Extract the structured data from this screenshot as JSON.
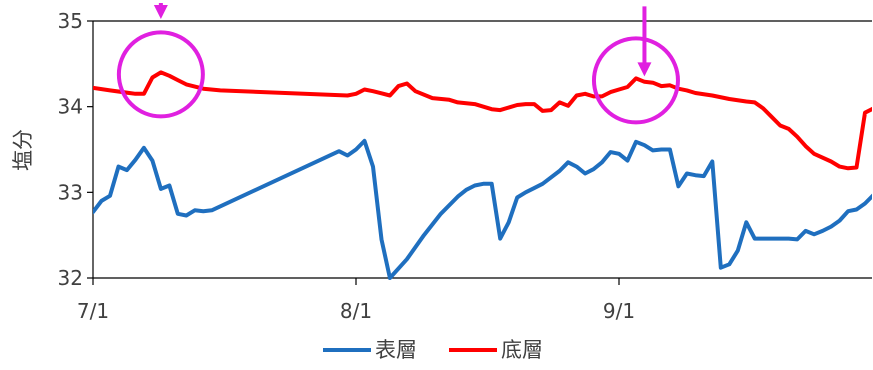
{
  "chart_data": {
    "type": "line",
    "title": "",
    "xlabel": "",
    "ylabel": "塩分",
    "ylim": [
      32,
      35
    ],
    "yticks": [
      "32",
      "33",
      "34",
      "35"
    ],
    "xlim": [
      "2023-07-01",
      "2023-09-30"
    ],
    "xticks": [
      {
        "date": "2023-07-01",
        "label": "7/1"
      },
      {
        "date": "2023-08-01",
        "label": "8/1"
      },
      {
        "date": "2023-09-01",
        "label": "9/1"
      }
    ],
    "grid": "horizontal at y=32 and y=35 only",
    "legend_position": "bottom",
    "series": [
      {
        "name": "表層",
        "color": "#1f6fbf",
        "points": [
          [
            "2023-07-01",
            32.77
          ],
          [
            "2023-07-02",
            32.9
          ],
          [
            "2023-07-03",
            32.96
          ],
          [
            "2023-07-04",
            33.3
          ],
          [
            "2023-07-05",
            33.26
          ],
          [
            "2023-07-06",
            33.38
          ],
          [
            "2023-07-07",
            33.52
          ],
          [
            "2023-07-08",
            33.37
          ],
          [
            "2023-07-09",
            33.04
          ],
          [
            "2023-07-10",
            33.08
          ],
          [
            "2023-07-11",
            32.75
          ],
          [
            "2023-07-12",
            32.73
          ],
          [
            "2023-07-13",
            32.79
          ],
          [
            "2023-07-14",
            32.78
          ],
          [
            "2023-07-15",
            32.79
          ],
          [
            "2023-07-30",
            33.48
          ],
          [
            "2023-07-31",
            33.43
          ],
          [
            "2023-08-01",
            33.5
          ],
          [
            "2023-08-02",
            33.6
          ],
          [
            "2023-08-03",
            33.3
          ],
          [
            "2023-08-04",
            32.45
          ],
          [
            "2023-08-05",
            32.0
          ],
          [
            "2023-08-07",
            32.22
          ],
          [
            "2023-08-09",
            32.5
          ],
          [
            "2023-08-11",
            32.75
          ],
          [
            "2023-08-13",
            32.95
          ],
          [
            "2023-08-14",
            33.03
          ],
          [
            "2023-08-15",
            33.08
          ],
          [
            "2023-08-16",
            33.1
          ],
          [
            "2023-08-17",
            33.1
          ],
          [
            "2023-08-18",
            32.46
          ],
          [
            "2023-08-19",
            32.65
          ],
          [
            "2023-08-20",
            32.94
          ],
          [
            "2023-08-21",
            33.0
          ],
          [
            "2023-08-22",
            33.05
          ],
          [
            "2023-08-23",
            33.1
          ],
          [
            "2023-08-25",
            33.25
          ],
          [
            "2023-08-26",
            33.35
          ],
          [
            "2023-08-27",
            33.3
          ],
          [
            "2023-08-28",
            33.22
          ],
          [
            "2023-08-29",
            33.27
          ],
          [
            "2023-08-30",
            33.35
          ],
          [
            "2023-08-31",
            33.47
          ],
          [
            "2023-09-01",
            33.45
          ],
          [
            "2023-09-02",
            33.37
          ],
          [
            "2023-09-03",
            33.59
          ],
          [
            "2023-09-04",
            33.55
          ],
          [
            "2023-09-05",
            33.49
          ],
          [
            "2023-09-06",
            33.5
          ],
          [
            "2023-09-07",
            33.5
          ],
          [
            "2023-09-08",
            33.07
          ],
          [
            "2023-09-09",
            33.22
          ],
          [
            "2023-09-10",
            33.2
          ],
          [
            "2023-09-11",
            33.19
          ],
          [
            "2023-09-12",
            33.36
          ],
          [
            "2023-09-13",
            32.12
          ],
          [
            "2023-09-14",
            32.16
          ],
          [
            "2023-09-15",
            32.32
          ],
          [
            "2023-09-16",
            32.65
          ],
          [
            "2023-09-17",
            32.46
          ],
          [
            "2023-09-21",
            32.46
          ],
          [
            "2023-09-22",
            32.45
          ],
          [
            "2023-09-23",
            32.55
          ],
          [
            "2023-09-24",
            32.51
          ],
          [
            "2023-09-25",
            32.55
          ],
          [
            "2023-09-26",
            32.6
          ],
          [
            "2023-09-27",
            32.67
          ],
          [
            "2023-09-28",
            32.78
          ],
          [
            "2023-09-29",
            32.8
          ],
          [
            "2023-09-30",
            32.87
          ],
          [
            "2023-10-01",
            32.97
          ],
          [
            "2023-10-02",
            33.03
          ],
          [
            "2023-10-03",
            32.65
          ],
          [
            "2023-10-04",
            32.0
          ]
        ]
      },
      {
        "name": "底層",
        "color": "#ff0000",
        "points": [
          [
            "2023-07-01",
            34.22
          ],
          [
            "2023-07-03",
            34.19
          ],
          [
            "2023-07-06",
            34.15
          ],
          [
            "2023-07-07",
            34.15
          ],
          [
            "2023-07-08",
            34.34
          ],
          [
            "2023-07-09",
            34.4
          ],
          [
            "2023-07-10",
            34.36
          ],
          [
            "2023-07-11",
            34.31
          ],
          [
            "2023-07-12",
            34.26
          ],
          [
            "2023-07-14",
            34.21
          ],
          [
            "2023-07-16",
            34.19
          ],
          [
            "2023-07-31",
            34.13
          ],
          [
            "2023-08-01",
            34.15
          ],
          [
            "2023-08-02",
            34.2
          ],
          [
            "2023-08-03",
            34.18
          ],
          [
            "2023-08-05",
            34.13
          ],
          [
            "2023-08-06",
            34.24
          ],
          [
            "2023-08-07",
            34.27
          ],
          [
            "2023-08-08",
            34.18
          ],
          [
            "2023-08-10",
            34.1
          ],
          [
            "2023-08-12",
            34.08
          ],
          [
            "2023-08-13",
            34.05
          ],
          [
            "2023-08-15",
            34.03
          ],
          [
            "2023-08-17",
            33.97
          ],
          [
            "2023-08-18",
            33.96
          ],
          [
            "2023-08-20",
            34.02
          ],
          [
            "2023-08-21",
            34.03
          ],
          [
            "2023-08-22",
            34.03
          ],
          [
            "2023-08-23",
            33.95
          ],
          [
            "2023-08-24",
            33.96
          ],
          [
            "2023-08-25",
            34.05
          ],
          [
            "2023-08-26",
            34.01
          ],
          [
            "2023-08-27",
            34.13
          ],
          [
            "2023-08-28",
            34.15
          ],
          [
            "2023-08-29",
            34.12
          ],
          [
            "2023-08-30",
            34.12
          ],
          [
            "2023-08-31",
            34.17
          ],
          [
            "2023-09-01",
            34.2
          ],
          [
            "2023-09-02",
            34.23
          ],
          [
            "2023-09-03",
            34.33
          ],
          [
            "2023-09-04",
            34.29
          ],
          [
            "2023-09-05",
            34.28
          ],
          [
            "2023-09-06",
            34.24
          ],
          [
            "2023-09-07",
            34.25
          ],
          [
            "2023-09-08",
            34.21
          ],
          [
            "2023-09-09",
            34.19
          ],
          [
            "2023-09-10",
            34.16
          ],
          [
            "2023-09-12",
            34.13
          ],
          [
            "2023-09-14",
            34.09
          ],
          [
            "2023-09-16",
            34.06
          ],
          [
            "2023-09-17",
            34.05
          ],
          [
            "2023-09-18",
            33.98
          ],
          [
            "2023-09-19",
            33.88
          ],
          [
            "2023-09-20",
            33.78
          ],
          [
            "2023-09-21",
            33.74
          ],
          [
            "2023-09-22",
            33.65
          ],
          [
            "2023-09-23",
            33.54
          ],
          [
            "2023-09-24",
            33.45
          ],
          [
            "2023-09-26",
            33.36
          ],
          [
            "2023-09-27",
            33.3
          ],
          [
            "2023-09-28",
            33.28
          ],
          [
            "2023-09-29",
            33.29
          ],
          [
            "2023-09-30",
            33.93
          ],
          [
            "2023-10-01",
            33.98
          ],
          [
            "2023-10-02",
            33.95
          ],
          [
            "2023-10-04",
            33.9
          ]
        ]
      }
    ],
    "annotations": [
      {
        "type": "circle",
        "color": "#e020e0",
        "date": "2023-07-09",
        "value": 34.4
      },
      {
        "type": "circle",
        "color": "#e020e0",
        "date": "2023-09-03",
        "value": 34.33
      },
      {
        "type": "arrow-down",
        "color": "#e020e0",
        "date": "2023-07-09",
        "value": 35.0
      },
      {
        "type": "arrow-down",
        "color": "#e020e0",
        "date": "2023-09-04",
        "value": 34.33
      }
    ]
  }
}
